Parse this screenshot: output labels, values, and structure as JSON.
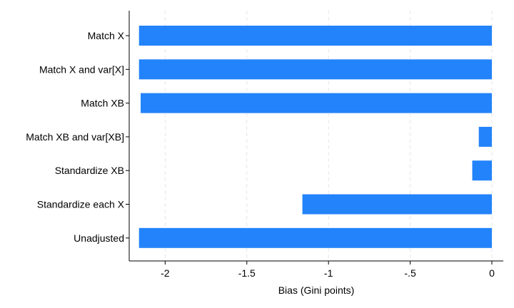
{
  "chart_data": {
    "type": "bar",
    "orientation": "horizontal",
    "title": "",
    "xlabel": "Bias (Gini points)",
    "ylabel": "",
    "xlim": [
      -2.22,
      0.07
    ],
    "xticks": [
      -2,
      -1.5,
      -1,
      -0.5,
      0
    ],
    "xtick_labels": [
      "-2",
      "-1.5",
      "-1",
      "-.5",
      "0"
    ],
    "grid": "vertical dashed",
    "legend": "none",
    "bar_color": "#2383fa",
    "categories": [
      "Match X",
      "Match X and var[X]",
      "Match XB",
      "Match XB and var[XB]",
      "Standardize XB",
      "Standardize each X",
      "Unadjusted"
    ],
    "values": [
      -2.16,
      -2.16,
      -2.15,
      -0.08,
      -0.12,
      -1.16,
      -2.16
    ]
  }
}
